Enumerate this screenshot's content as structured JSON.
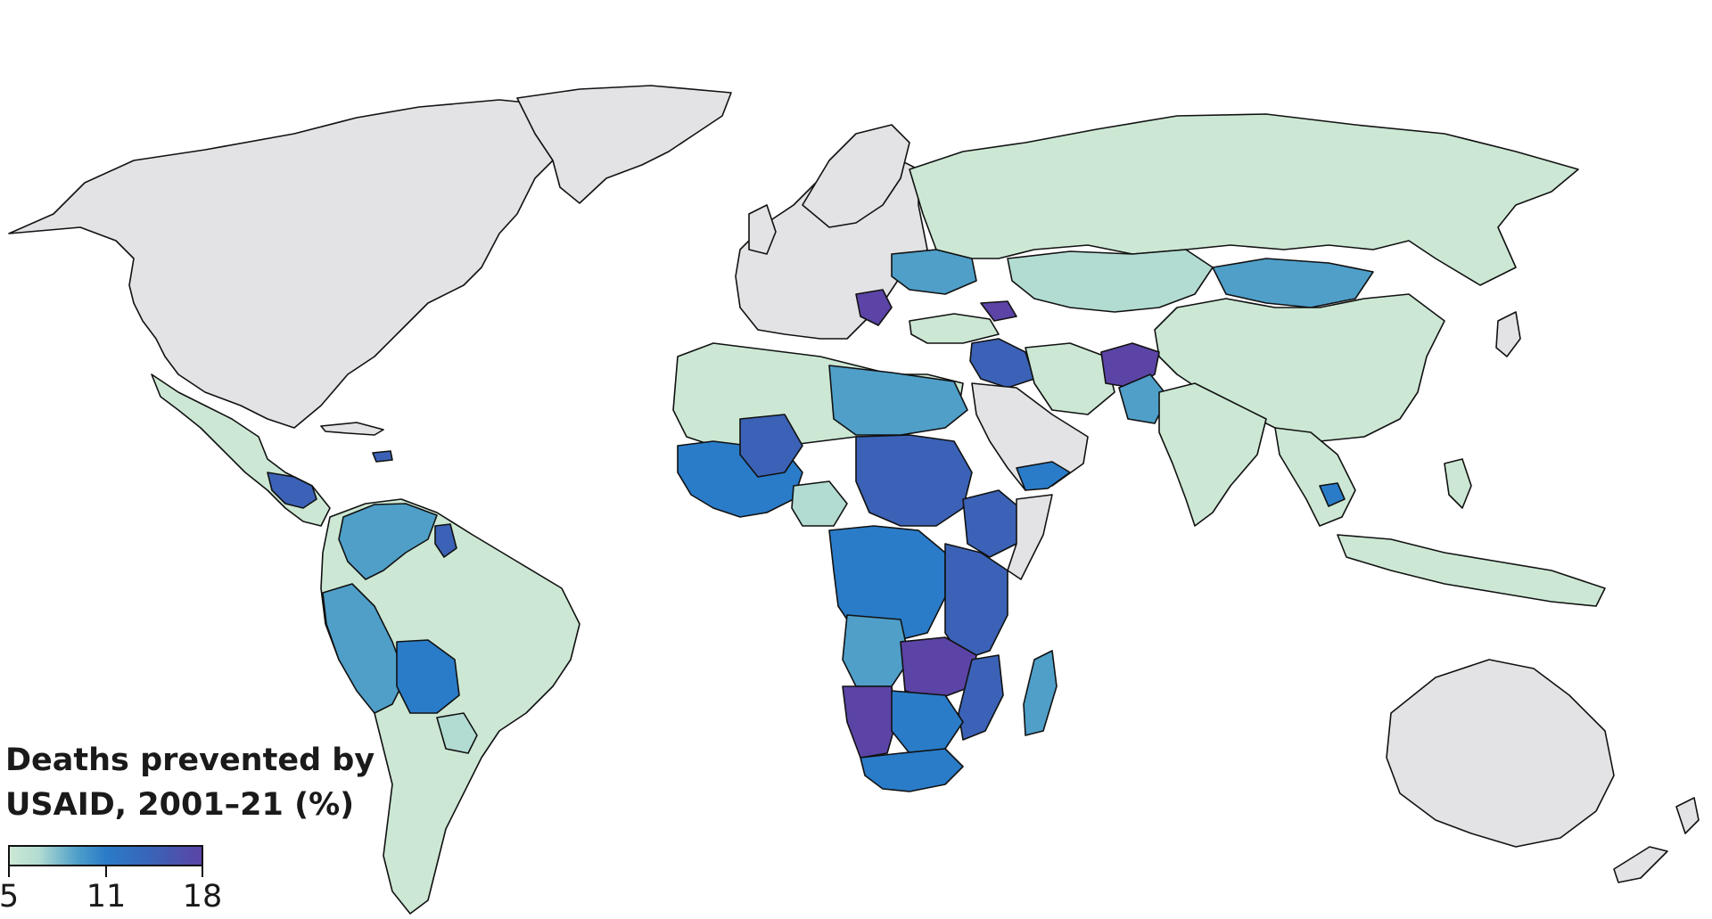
{
  "legend": {
    "title_line1": "Deaths prevented by",
    "title_line2": "USAID, 2001–21 (%)",
    "scale_min": 5,
    "scale_mid": 11,
    "scale_max": 18,
    "tick_labels": [
      "5",
      "11",
      "18"
    ]
  },
  "colors": {
    "no_data": "#e3e3e5",
    "low": "#cce8d4",
    "low_mid": "#b2dcd2",
    "mid_low": "#4f9fc9",
    "mid": "#2a7cc8",
    "mid_high": "#3b62b6",
    "high": "#5b44a6",
    "ocean": "#ffffff",
    "border": "#111111"
  },
  "regions": [
    {
      "name": "North America",
      "level": "no_data"
    },
    {
      "name": "Greenland",
      "level": "no_data"
    },
    {
      "name": "Mexico and Central America",
      "level": "low"
    },
    {
      "name": "South America",
      "level": "low"
    },
    {
      "name": "Europe",
      "level": "no_data"
    },
    {
      "name": "Russia",
      "level": "low"
    },
    {
      "name": "China",
      "level": "low"
    },
    {
      "name": "India",
      "level": "low"
    },
    {
      "name": "Africa",
      "level": "mid"
    },
    {
      "name": "Australia",
      "level": "no_data"
    },
    {
      "name": "Afghanistan",
      "level": "high"
    },
    {
      "name": "Kazakhstan",
      "level": "low_mid"
    },
    {
      "name": "Mongolia",
      "level": "mid_low"
    },
    {
      "name": "Namibia",
      "level": "high"
    },
    {
      "name": "Madagascar",
      "level": "mid_low"
    }
  ]
}
